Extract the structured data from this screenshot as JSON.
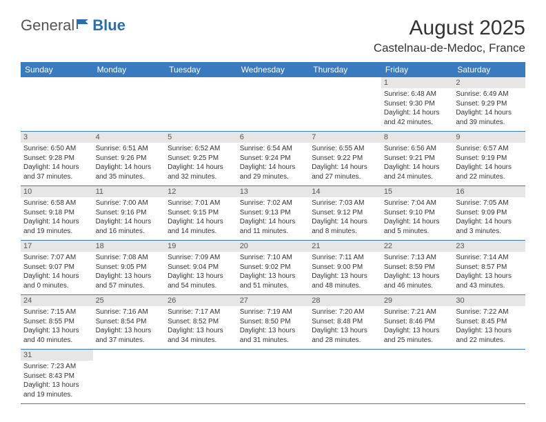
{
  "logo": {
    "part1": "General",
    "part2": "Blue",
    "icon_color": "#2a6db0"
  },
  "title": "August 2025",
  "location": "Castelnau-de-Medoc, France",
  "colors": {
    "header_bg": "#3a7bbf",
    "header_text": "#ffffff",
    "daynum_bg": "#e6e6e6",
    "border": "#3a7bbf",
    "text": "#333333"
  },
  "weekdays": [
    "Sunday",
    "Monday",
    "Tuesday",
    "Wednesday",
    "Thursday",
    "Friday",
    "Saturday"
  ],
  "weeks": [
    [
      null,
      null,
      null,
      null,
      null,
      {
        "n": "1",
        "sr": "6:48 AM",
        "ss": "9:30 PM",
        "dl": "14 hours and 42 minutes."
      },
      {
        "n": "2",
        "sr": "6:49 AM",
        "ss": "9:29 PM",
        "dl": "14 hours and 39 minutes."
      }
    ],
    [
      {
        "n": "3",
        "sr": "6:50 AM",
        "ss": "9:28 PM",
        "dl": "14 hours and 37 minutes."
      },
      {
        "n": "4",
        "sr": "6:51 AM",
        "ss": "9:26 PM",
        "dl": "14 hours and 35 minutes."
      },
      {
        "n": "5",
        "sr": "6:52 AM",
        "ss": "9:25 PM",
        "dl": "14 hours and 32 minutes."
      },
      {
        "n": "6",
        "sr": "6:54 AM",
        "ss": "9:24 PM",
        "dl": "14 hours and 29 minutes."
      },
      {
        "n": "7",
        "sr": "6:55 AM",
        "ss": "9:22 PM",
        "dl": "14 hours and 27 minutes."
      },
      {
        "n": "8",
        "sr": "6:56 AM",
        "ss": "9:21 PM",
        "dl": "14 hours and 24 minutes."
      },
      {
        "n": "9",
        "sr": "6:57 AM",
        "ss": "9:19 PM",
        "dl": "14 hours and 22 minutes."
      }
    ],
    [
      {
        "n": "10",
        "sr": "6:58 AM",
        "ss": "9:18 PM",
        "dl": "14 hours and 19 minutes."
      },
      {
        "n": "11",
        "sr": "7:00 AM",
        "ss": "9:16 PM",
        "dl": "14 hours and 16 minutes."
      },
      {
        "n": "12",
        "sr": "7:01 AM",
        "ss": "9:15 PM",
        "dl": "14 hours and 14 minutes."
      },
      {
        "n": "13",
        "sr": "7:02 AM",
        "ss": "9:13 PM",
        "dl": "14 hours and 11 minutes."
      },
      {
        "n": "14",
        "sr": "7:03 AM",
        "ss": "9:12 PM",
        "dl": "14 hours and 8 minutes."
      },
      {
        "n": "15",
        "sr": "7:04 AM",
        "ss": "9:10 PM",
        "dl": "14 hours and 5 minutes."
      },
      {
        "n": "16",
        "sr": "7:05 AM",
        "ss": "9:09 PM",
        "dl": "14 hours and 3 minutes."
      }
    ],
    [
      {
        "n": "17",
        "sr": "7:07 AM",
        "ss": "9:07 PM",
        "dl": "14 hours and 0 minutes."
      },
      {
        "n": "18",
        "sr": "7:08 AM",
        "ss": "9:05 PM",
        "dl": "13 hours and 57 minutes."
      },
      {
        "n": "19",
        "sr": "7:09 AM",
        "ss": "9:04 PM",
        "dl": "13 hours and 54 minutes."
      },
      {
        "n": "20",
        "sr": "7:10 AM",
        "ss": "9:02 PM",
        "dl": "13 hours and 51 minutes."
      },
      {
        "n": "21",
        "sr": "7:11 AM",
        "ss": "9:00 PM",
        "dl": "13 hours and 48 minutes."
      },
      {
        "n": "22",
        "sr": "7:13 AM",
        "ss": "8:59 PM",
        "dl": "13 hours and 46 minutes."
      },
      {
        "n": "23",
        "sr": "7:14 AM",
        "ss": "8:57 PM",
        "dl": "13 hours and 43 minutes."
      }
    ],
    [
      {
        "n": "24",
        "sr": "7:15 AM",
        "ss": "8:55 PM",
        "dl": "13 hours and 40 minutes."
      },
      {
        "n": "25",
        "sr": "7:16 AM",
        "ss": "8:54 PM",
        "dl": "13 hours and 37 minutes."
      },
      {
        "n": "26",
        "sr": "7:17 AM",
        "ss": "8:52 PM",
        "dl": "13 hours and 34 minutes."
      },
      {
        "n": "27",
        "sr": "7:19 AM",
        "ss": "8:50 PM",
        "dl": "13 hours and 31 minutes."
      },
      {
        "n": "28",
        "sr": "7:20 AM",
        "ss": "8:48 PM",
        "dl": "13 hours and 28 minutes."
      },
      {
        "n": "29",
        "sr": "7:21 AM",
        "ss": "8:46 PM",
        "dl": "13 hours and 25 minutes."
      },
      {
        "n": "30",
        "sr": "7:22 AM",
        "ss": "8:45 PM",
        "dl": "13 hours and 22 minutes."
      }
    ],
    [
      {
        "n": "31",
        "sr": "7:23 AM",
        "ss": "8:43 PM",
        "dl": "13 hours and 19 minutes."
      },
      null,
      null,
      null,
      null,
      null,
      null
    ]
  ],
  "labels": {
    "sunrise": "Sunrise:",
    "sunset": "Sunset:",
    "daylight": "Daylight:"
  }
}
